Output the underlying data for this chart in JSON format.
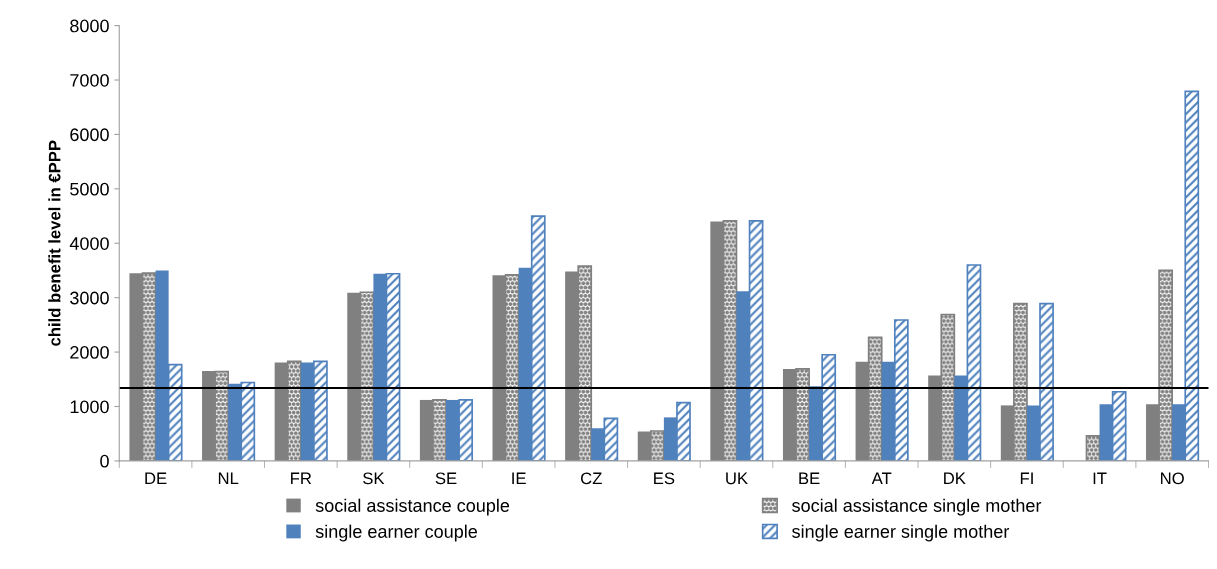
{
  "chart_data": {
    "type": "bar",
    "ylabel": "child benefit level in €PPP",
    "categories": [
      "DE",
      "NL",
      "FR",
      "SK",
      "SE",
      "IE",
      "CZ",
      "ES",
      "UK",
      "BE",
      "AT",
      "DK",
      "FI",
      "IT",
      "NO"
    ],
    "series": [
      {
        "name": "social assistance couple",
        "color": "#808080",
        "values": [
          3450,
          1650,
          1810,
          3090,
          1120,
          3410,
          3480,
          540,
          4400,
          1690,
          1820,
          1570,
          1020,
          null,
          1040
        ]
      },
      {
        "name": "social assistance single mother",
        "color": "#808080",
        "values": [
          3450,
          1640,
          1830,
          3100,
          1120,
          3420,
          3580,
          550,
          4410,
          1690,
          2270,
          2690,
          2890,
          460,
          3500
        ]
      },
      {
        "name": "single earner couple",
        "color": "#4f81bd",
        "values": [
          3500,
          1420,
          1810,
          3440,
          1120,
          3550,
          600,
          800,
          3120,
          1370,
          1820,
          1570,
          1020,
          1040,
          1040
        ]
      },
      {
        "name": "single earner single mother",
        "color": "#4f81bd",
        "values": [
          1770,
          1440,
          1830,
          3440,
          1120,
          4500,
          780,
          1070,
          4410,
          1950,
          2590,
          3600,
          2890,
          1270,
          6790
        ]
      }
    ],
    "ylim": [
      0,
      8000
    ],
    "yticks": [
      0,
      1000,
      2000,
      3000,
      4000,
      5000,
      6000,
      7000,
      8000
    ],
    "ref_lines": [
      {
        "axis": "y",
        "value": 1340,
        "color": "#000000"
      }
    ],
    "grid": false,
    "legend": "bottom"
  }
}
